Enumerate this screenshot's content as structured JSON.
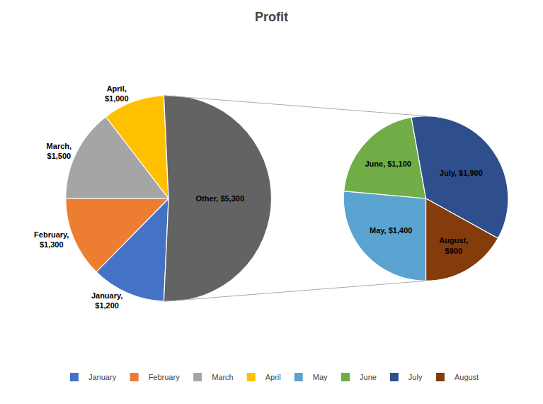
{
  "chart_data": [
    {
      "type": "pie",
      "title": "Profit",
      "categories": [
        "January",
        "February",
        "March",
        "April",
        "Other"
      ],
      "values": [
        1200,
        1300,
        1500,
        1000,
        5300
      ],
      "colors": [
        "#4472C4",
        "#ED7D31",
        "#A5A5A5",
        "#FFC000",
        "#636363"
      ],
      "value_labels": [
        "January,\n$1,200",
        "February,\n$1,300",
        "March,\n$1,500",
        "April,\n$1,000",
        "Other, $5,300"
      ],
      "data_labels": true,
      "legend": "bottom"
    },
    {
      "type": "pie",
      "categories": [
        "May",
        "June",
        "July",
        "August"
      ],
      "values": [
        1400,
        1100,
        1900,
        900
      ],
      "colors": [
        "#5BA3D0",
        "#70AD47",
        "#2E4F8C",
        "#843C0C"
      ],
      "value_labels": [
        "May, $1,400",
        "June, $1,100",
        "July, $1,900",
        "August,\n$900"
      ],
      "data_labels": true
    }
  ]
}
